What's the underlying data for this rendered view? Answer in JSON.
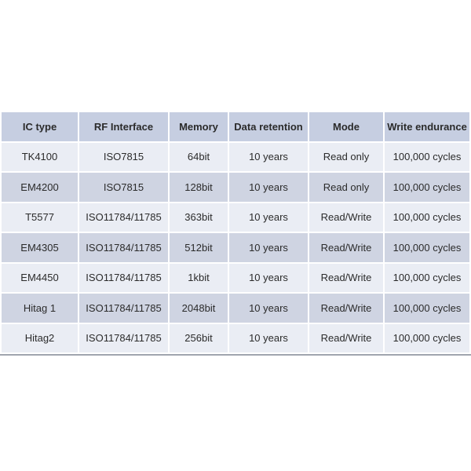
{
  "table": {
    "headers": [
      "IC type",
      "RF Interface",
      "Memory",
      "Data retention",
      "Mode",
      "Write endurance"
    ],
    "rows": [
      [
        "TK4100",
        "ISO7815",
        "64bit",
        "10 years",
        "Read only",
        "100,000 cycles"
      ],
      [
        "EM4200",
        "ISO7815",
        "128bit",
        "10 years",
        "Read only",
        "100,000 cycles"
      ],
      [
        "T5577",
        "ISO11784/11785",
        "363bit",
        "10 years",
        "Read/Write",
        "100,000 cycles"
      ],
      [
        "EM4305",
        "ISO11784/11785",
        "512bit",
        "10 years",
        "Read/Write",
        "100,000 cycles"
      ],
      [
        "EM4450",
        "ISO11784/11785",
        "1kbit",
        "10 years",
        "Read/Write",
        "100,000 cycles"
      ],
      [
        "Hitag 1",
        "ISO11784/11785",
        "2048bit",
        "10 years",
        "Read/Write",
        "100,000 cycles"
      ],
      [
        "Hitag2",
        "ISO11784/11785",
        "256bit",
        "10 years",
        "Read/Write",
        "100,000 cycles"
      ]
    ],
    "colors": {
      "header_bg": "#c6cee1",
      "row_odd_bg": "#eaedf4",
      "row_even_bg": "#cfd4e2",
      "grid_line": "#ffffff",
      "text": "#2b2b2b",
      "bottom_rule": "#a0a5ae",
      "page_bg": "#ffffff"
    }
  }
}
